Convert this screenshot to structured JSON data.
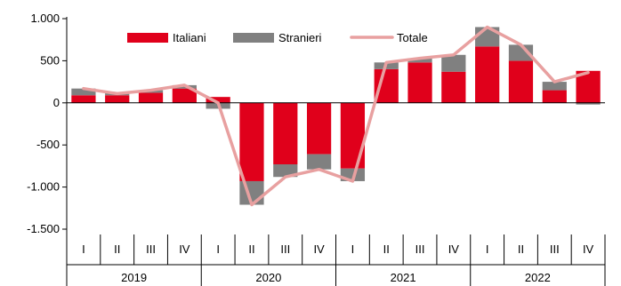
{
  "chart_data": {
    "type": "bar",
    "subtype": "stacked-bar-with-line",
    "quarters": [
      "I",
      "II",
      "III",
      "IV",
      "I",
      "II",
      "III",
      "IV",
      "I",
      "II",
      "III",
      "IV",
      "I",
      "II",
      "III",
      "IV"
    ],
    "years": [
      "2019",
      "2020",
      "2021",
      "2022"
    ],
    "y_ticks": [
      {
        "value": 1000,
        "label": "1.000"
      },
      {
        "value": 500,
        "label": "500"
      },
      {
        "value": 0,
        "label": "0"
      },
      {
        "value": -500,
        "label": "-500"
      },
      {
        "value": -1000,
        "label": "-1.000"
      },
      {
        "value": -1500,
        "label": "-1.500"
      }
    ],
    "ylim": [
      -1500,
      1000
    ],
    "legend_position": "top-center",
    "series": [
      {
        "name": "Italiani",
        "kind": "bar",
        "color": "#e0001b",
        "values": [
          90,
          90,
          120,
          170,
          70,
          -930,
          -730,
          -610,
          -780,
          400,
          480,
          370,
          670,
          500,
          150,
          380
        ]
      },
      {
        "name": "Stranieri",
        "kind": "bar",
        "color": "#808080",
        "values": [
          80,
          30,
          30,
          40,
          -70,
          -280,
          -150,
          -180,
          -150,
          80,
          50,
          200,
          230,
          190,
          100,
          -20
        ]
      },
      {
        "name": "Totale",
        "kind": "line",
        "color": "#e8a0a0",
        "values": [
          170,
          110,
          150,
          210,
          0,
          -1210,
          -880,
          -790,
          -930,
          480,
          530,
          570,
          900,
          690,
          250,
          360
        ]
      }
    ]
  }
}
